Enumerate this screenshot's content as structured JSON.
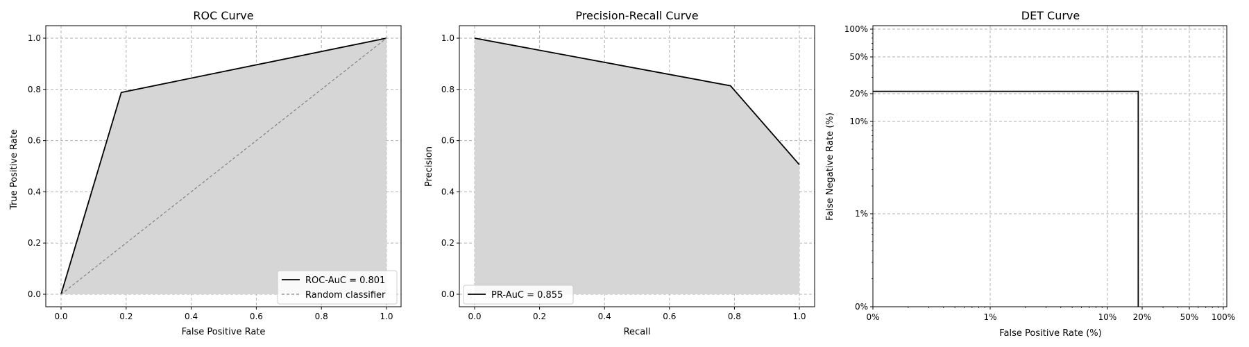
{
  "chart_data": [
    {
      "type": "line",
      "title": "ROC Curve",
      "xlabel": "False Positive Rate",
      "ylabel": "True Positive Rate",
      "xlim": [
        0,
        1
      ],
      "ylim": [
        0,
        1
      ],
      "grid": true,
      "legend_position": "lower-right",
      "xticks": [
        "0.0",
        "0.2",
        "0.4",
        "0.6",
        "0.8",
        "1.0"
      ],
      "yticks": [
        "0.0",
        "0.2",
        "0.4",
        "0.6",
        "0.8",
        "1.0"
      ],
      "series": [
        {
          "name": "ROC-AuC = 0.801",
          "style": "solid",
          "color": "#000000",
          "fill": "#d6d6d6",
          "x": [
            0.0,
            0.185,
            1.0
          ],
          "y": [
            0.0,
            0.788,
            1.0
          ]
        },
        {
          "name": "Random classifier",
          "style": "dashed",
          "color": "#808080",
          "x": [
            0.0,
            1.0
          ],
          "y": [
            0.0,
            1.0
          ]
        }
      ]
    },
    {
      "type": "line",
      "title": "Precision-Recall Curve",
      "xlabel": "Recall",
      "ylabel": "Precision",
      "xlim": [
        0,
        1
      ],
      "ylim": [
        0,
        1
      ],
      "grid": true,
      "legend_position": "lower-left",
      "xticks": [
        "0.0",
        "0.2",
        "0.4",
        "0.6",
        "0.8",
        "1.0"
      ],
      "yticks": [
        "0.0",
        "0.2",
        "0.4",
        "0.6",
        "0.8",
        "1.0"
      ],
      "series": [
        {
          "name": "PR-AuC = 0.855",
          "style": "solid",
          "color": "#000000",
          "fill": "#d6d6d6",
          "x": [
            0.0,
            0.788,
            1.0
          ],
          "y": [
            1.0,
            0.814,
            0.506
          ]
        }
      ]
    },
    {
      "type": "line",
      "title": "DET Curve",
      "xlabel": "False Positive Rate (%)",
      "ylabel": "False Negative Rate (%)",
      "scale": "normal-deviate",
      "grid": true,
      "xticks": [
        "0%",
        "1%",
        "10%",
        "20%",
        "50%",
        "100%"
      ],
      "yticks": [
        "0%",
        "1%",
        "10%",
        "20%",
        "50%",
        "100%"
      ],
      "series": [
        {
          "style": "solid",
          "color": "#000000",
          "x": [
            0.0,
            18.5,
            18.5
          ],
          "y": [
            21.2,
            21.2,
            0.0
          ]
        }
      ]
    }
  ]
}
